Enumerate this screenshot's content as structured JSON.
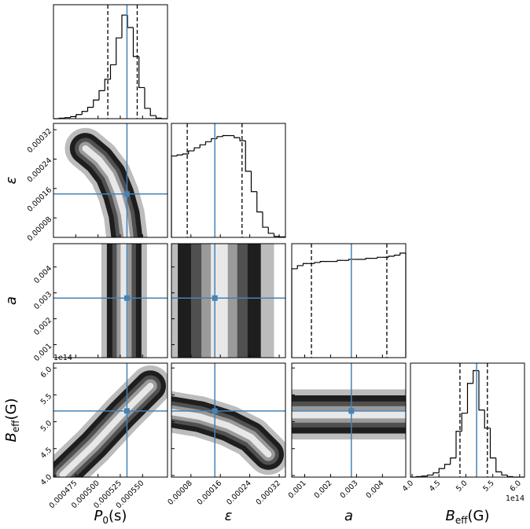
{
  "chart_data": {
    "type": "corner",
    "truth_color": "#4682b4",
    "hist_color": "#000000",
    "offset_text": "1e14",
    "parameters": [
      {
        "label": {
          "text": "P",
          "subscript": "0",
          "suffix": "(s)"
        },
        "lim": [
          0.00045,
          0.000578
        ],
        "ticks": [
          0.000475,
          {
            "value": 0.0005,
            "label": "0.000500"
          },
          0.000525,
          {
            "value": 0.00055,
            "label": "0.000550"
          }
        ],
        "truth": 0.0005325,
        "quantiles": [
          0.000511,
          0.000544
        ],
        "bins": [
          0.00045,
          0.0004564,
          0.0004628,
          0.0004692,
          0.0004756,
          0.000482,
          0.0004884,
          0.0004948,
          0.0005012,
          0.0005076,
          0.000514,
          0.0005204,
          0.0005268,
          0.0005332,
          0.0005396,
          0.000546,
          0.0005524,
          0.0005588,
          0.0005652,
          0.0005716,
          0.000578
        ],
        "counts": [
          0,
          0.5,
          1,
          2,
          4,
          7,
          11,
          18,
          27,
          38,
          52,
          78,
          100,
          88,
          60,
          30,
          10,
          3,
          0.5,
          0
        ],
        "hist_ylim": [
          0,
          110
        ]
      },
      {
        "label": {
          "text": "ε"
        },
        "lim": [
          2.7e-05,
          0.000337
        ],
        "ticks": [
          8e-05,
          0.00016,
          0.00024,
          0.00032
        ],
        "truth": 0.000145,
        "quantiles": [
          7e-05,
          0.000219
        ],
        "bins": [
          2.7e-05,
          4.25e-05,
          5.8e-05,
          7.35e-05,
          8.9e-05,
          0.0001045,
          0.00012,
          0.0001355,
          0.000151,
          0.0001665,
          0.000182,
          0.0001975,
          0.000213,
          0.0002285,
          0.000244,
          0.0002595,
          0.000275,
          0.0002905,
          0.000306,
          0.0003215,
          0.000337
        ],
        "counts": [
          80,
          81,
          82,
          85,
          88,
          91,
          94,
          97,
          99,
          100,
          100,
          98,
          95,
          65,
          45,
          25,
          10,
          4,
          1,
          0.5
        ],
        "hist_ylim": [
          0,
          112
        ]
      },
      {
        "label": {
          "text": "a"
        },
        "lim": [
          0.0005,
          0.0049
        ],
        "ticks": [
          0.001,
          0.002,
          0.003,
          0.004
        ],
        "truth": 0.0028,
        "quantiles": [
          0.00126,
          0.00417
        ],
        "bins": [
          0.0005,
          0.00072,
          0.00094,
          0.00116,
          0.00138,
          0.0016,
          0.00182,
          0.00204,
          0.00226,
          0.00248,
          0.0027,
          0.00292,
          0.00314,
          0.00336,
          0.00358,
          0.0038,
          0.00402,
          0.00424,
          0.00446,
          0.00468,
          0.0049
        ],
        "counts": [
          85,
          88,
          90,
          90,
          91,
          92,
          92,
          92,
          93,
          93,
          94,
          94,
          94,
          95,
          95,
          96,
          96,
          97,
          98,
          100
        ],
        "hist_ylim": [
          0,
          109
        ]
      },
      {
        "label": {
          "text": "B",
          "subscript": "eff",
          "suffix": "(G)"
        },
        "lim": [
          397000000000000,
          609000000000000
        ],
        "ticks": [
          {
            "value": 400000000000000,
            "label": "4.0"
          },
          {
            "value": 450000000000000,
            "label": "4.5"
          },
          {
            "value": 500000000000000,
            "label": "5.0"
          },
          {
            "value": 550000000000000,
            "label": "5.5"
          },
          {
            "value": 600000000000000,
            "label": "6.0"
          }
        ],
        "truth": 520000000000000,
        "quantiles": [
          489000000000000,
          540000000000000
        ],
        "bins": [
          397000000000000,
          407600000000000,
          418200000000000,
          428800000000000,
          439400000000000,
          450000000000000,
          460600000000000,
          471200000000000,
          481800000000000,
          492400000000000,
          503000000000000,
          513600000000000,
          524200000000000,
          534800000000000,
          545400000000000,
          556000000000000,
          566600000000000,
          577200000000000,
          587800000000000,
          598400000000000,
          609000000000000
        ],
        "counts": [
          0,
          0.5,
          1,
          2,
          4,
          8,
          12,
          18,
          43,
          60,
          88,
          100,
          63,
          46,
          18,
          5,
          2,
          0.5,
          0,
          0
        ],
        "hist_ylim": [
          0,
          107
        ]
      }
    ]
  }
}
